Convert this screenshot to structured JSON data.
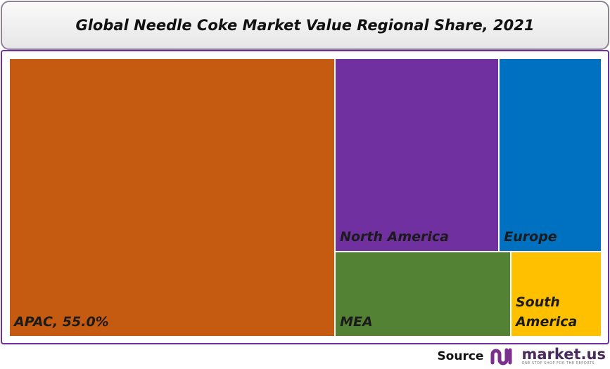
{
  "chart_data": {
    "type": "treemap",
    "title": "Global Needle Coke Market Value Regional Share, 2021",
    "categories": [
      "APAC",
      "North America",
      "Europe",
      "MEA",
      "South America"
    ],
    "values": [
      55.0,
      19.2,
      12.0,
      9.1,
      4.7
    ],
    "value_labels": [
      "APAC, 55.0%",
      null,
      null,
      null,
      null
    ],
    "colors": [
      "#c55a11",
      "#7030a0",
      "#0070c0",
      "#548235",
      "#ffc000"
    ]
  },
  "source": {
    "label": "Source",
    "brand": "market.us",
    "tagline": "ONE STOP SHOP FOR THE REPORTS"
  }
}
